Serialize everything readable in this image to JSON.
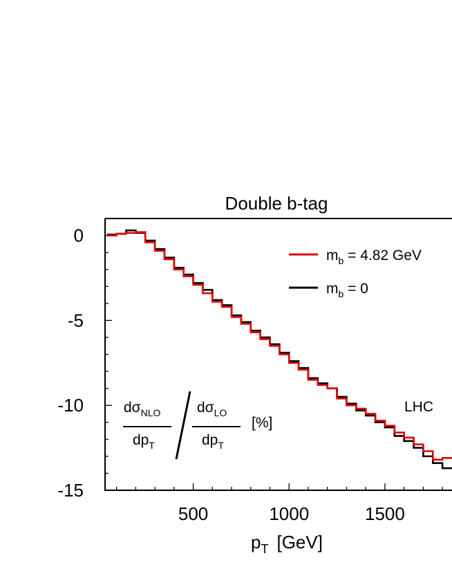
{
  "chart_data": {
    "type": "line",
    "title": "Double b-tag",
    "xlabel_main": "p",
    "xlabel_sub": "T",
    "xlabel_unit": "[GeV]",
    "ylabel": "",
    "xlim": [
      40,
      1850
    ],
    "ylim": [
      -15,
      1
    ],
    "x_ticks": [
      500,
      1000,
      1500
    ],
    "y_ticks": [
      0,
      -5,
      -10,
      -15
    ],
    "x_tick_labels": [
      "500",
      "1000",
      "1500"
    ],
    "y_tick_labels": [
      "0",
      "-5",
      "-10",
      "-15"
    ],
    "bin_edges": [
      50,
      100,
      150,
      200,
      250,
      300,
      350,
      400,
      450,
      500,
      550,
      600,
      650,
      700,
      750,
      800,
      850,
      900,
      950,
      1000,
      1050,
      1100,
      1150,
      1200,
      1250,
      1300,
      1350,
      1400,
      1450,
      1500,
      1550,
      1600,
      1650,
      1700,
      1750,
      1800,
      1850
    ],
    "series": [
      {
        "name": "m_b = 0",
        "legend_main": "m",
        "legend_sub": "b",
        "legend_rest": " = 0",
        "color": "#000000",
        "values": [
          0.05,
          0.1,
          0.3,
          0.15,
          -0.3,
          -0.8,
          -1.3,
          -1.9,
          -2.3,
          -2.8,
          -3.2,
          -3.8,
          -4.1,
          -4.7,
          -5.1,
          -5.6,
          -6.0,
          -6.4,
          -6.9,
          -7.4,
          -7.8,
          -8.4,
          -8.7,
          -9.0,
          -9.5,
          -9.9,
          -10.3,
          -10.6,
          -11.0,
          -11.3,
          -11.8,
          -12.1,
          -12.5,
          -13.0,
          -13.4,
          -13.7
        ]
      },
      {
        "name": "m_b = 4.82 GeV",
        "legend_main": "m",
        "legend_sub": "b",
        "legend_rest": " = 4.82 GeV",
        "color": "#e00000",
        "values": [
          0.0,
          0.1,
          0.15,
          0.2,
          -0.4,
          -0.9,
          -1.4,
          -2.0,
          -2.4,
          -2.9,
          -3.4,
          -3.9,
          -4.2,
          -4.8,
          -5.2,
          -5.7,
          -6.1,
          -6.5,
          -7.0,
          -7.5,
          -7.9,
          -8.5,
          -8.8,
          -9.0,
          -9.6,
          -10.0,
          -10.2,
          -10.5,
          -10.9,
          -11.2,
          -11.6,
          -11.9,
          -12.3,
          -12.7,
          -13.2,
          -13.1
        ]
      }
    ],
    "annotation": "LHC",
    "ratio_label": {
      "num_main": "dσ",
      "num_sub": "NLO",
      "num_den": "dp",
      "num_den_sub": "T",
      "den_main": "dσ",
      "den_sub": "LO",
      "den_den": "dp",
      "den_den_sub": "T",
      "unit": "[%]"
    },
    "legend_position": "top-right",
    "grid": false
  }
}
